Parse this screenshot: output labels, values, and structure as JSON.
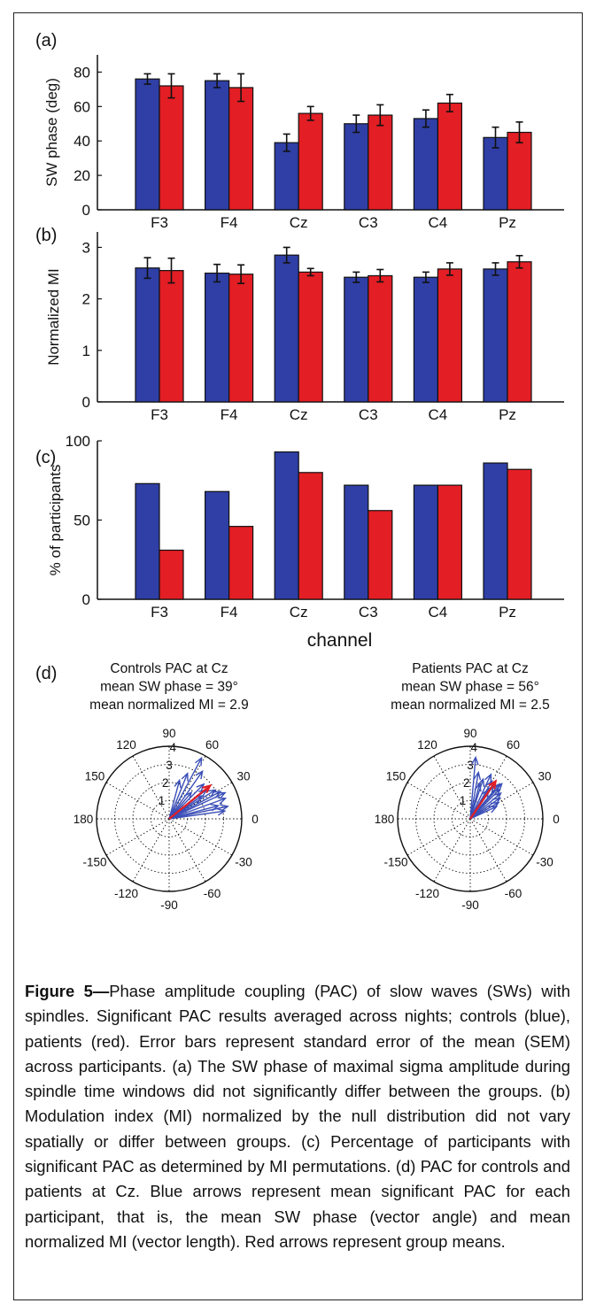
{
  "chart_data": [
    {
      "panel": "(a)",
      "type": "bar",
      "categories": [
        "F3",
        "F4",
        "Cz",
        "C3",
        "C4",
        "Pz"
      ],
      "ylabel": "SW phase (deg)",
      "ylim": [
        0,
        90
      ],
      "yticks": [
        0,
        20,
        40,
        60,
        80
      ],
      "series": [
        {
          "color": "#2f3fa6",
          "values": [
            76,
            75,
            39,
            50,
            53,
            42
          ],
          "errors": [
            3,
            4,
            5,
            5,
            5,
            6
          ]
        },
        {
          "color": "#e31e24",
          "values": [
            72,
            71,
            56,
            55,
            62,
            45
          ],
          "errors": [
            7,
            8,
            4,
            6,
            5,
            6
          ]
        }
      ]
    },
    {
      "panel": "(b)",
      "type": "bar",
      "categories": [
        "F3",
        "F4",
        "Cz",
        "C3",
        "C4",
        "Pz"
      ],
      "ylabel": "Normalized MI",
      "ylim": [
        0,
        3.3
      ],
      "yticks": [
        0,
        1,
        2,
        3
      ],
      "series": [
        {
          "color": "#2f3fa6",
          "values": [
            2.6,
            2.5,
            2.85,
            2.42,
            2.42,
            2.58
          ],
          "errors": [
            0.2,
            0.17,
            0.15,
            0.1,
            0.1,
            0.12
          ]
        },
        {
          "color": "#e31e24",
          "values": [
            2.55,
            2.48,
            2.52,
            2.45,
            2.58,
            2.72
          ],
          "errors": [
            0.24,
            0.18,
            0.07,
            0.12,
            0.12,
            0.12
          ]
        }
      ]
    },
    {
      "panel": "(c)",
      "type": "bar",
      "categories": [
        "F3",
        "F4",
        "Cz",
        "C3",
        "C4",
        "Pz"
      ],
      "ylabel": "% of participants",
      "xlabel": "channel",
      "ylim": [
        0,
        100
      ],
      "yticks": [
        0,
        50,
        100
      ],
      "series": [
        {
          "color": "#2f3fa6",
          "values": [
            73,
            68,
            93,
            72,
            72,
            86
          ]
        },
        {
          "color": "#e31e24",
          "values": [
            31,
            46,
            80,
            56,
            72,
            82
          ]
        }
      ]
    },
    {
      "panel": "(d)",
      "type": "polar",
      "rlim": [
        0,
        4
      ],
      "rticks": [
        "1",
        "2",
        "3",
        "4"
      ],
      "angle_labels": [
        "0",
        "30",
        "60",
        "90",
        "120",
        "150",
        "180",
        "-150",
        "-120",
        "-90",
        "-60",
        "-30"
      ],
      "plots": [
        {
          "title": [
            "Controls PAC at Cz",
            "mean SW phase = 39°",
            "mean normalized MI = 2.9"
          ],
          "arrows": [
            {
              "angle": 62,
              "mag": 3.8
            },
            {
              "angle": 55,
              "mag": 3.2
            },
            {
              "angle": 68,
              "mag": 2.7
            },
            {
              "angle": 75,
              "mag": 2.2
            },
            {
              "angle": 45,
              "mag": 2.7
            },
            {
              "angle": 38,
              "mag": 2.6
            },
            {
              "angle": 32,
              "mag": 3.0
            },
            {
              "angle": 28,
              "mag": 3.2
            },
            {
              "angle": 25,
              "mag": 3.4
            },
            {
              "angle": 20,
              "mag": 3.3
            },
            {
              "angle": 12,
              "mag": 3.3
            },
            {
              "angle": 8,
              "mag": 3.1
            },
            {
              "angle": 15,
              "mag": 2.8
            },
            {
              "angle": 35,
              "mag": 2.2
            },
            {
              "angle": 50,
              "mag": 1.9
            }
          ],
          "mean_arrow": {
            "angle": 39,
            "mag": 2.9
          }
        },
        {
          "title": [
            "Patients PAC at Cz",
            "mean SW phase = 56°",
            "mean normalized MI = 2.5"
          ],
          "arrows": [
            {
              "angle": 85,
              "mag": 3.4
            },
            {
              "angle": 80,
              "mag": 2.6
            },
            {
              "angle": 72,
              "mag": 2.3
            },
            {
              "angle": 65,
              "mag": 2.7
            },
            {
              "angle": 60,
              "mag": 2.4
            },
            {
              "angle": 55,
              "mag": 2.2
            },
            {
              "angle": 50,
              "mag": 2.5
            },
            {
              "angle": 45,
              "mag": 2.3
            },
            {
              "angle": 40,
              "mag": 2.2
            },
            {
              "angle": 35,
              "mag": 2.0
            },
            {
              "angle": 30,
              "mag": 1.8
            },
            {
              "angle": 25,
              "mag": 1.6
            },
            {
              "angle": 58,
              "mag": 1.9
            },
            {
              "angle": 75,
              "mag": 2.0
            },
            {
              "angle": 48,
              "mag": 2.6
            }
          ],
          "mean_arrow": {
            "angle": 56,
            "mag": 2.5
          }
        }
      ]
    }
  ],
  "caption": {
    "label": "Figure 5—",
    "text": "Phase amplitude coupling (PAC) of slow waves (SWs) with spindles. Significant PAC results averaged across nights; controls (blue), patients (red). Error bars represent standard error of the mean (SEM) across participants. (a) The SW phase of maximal sigma amplitude during spindle time windows did not significantly differ between the groups. (b) Modulation index (MI) normalized by the null distribution did not vary spatially or differ between groups. (c) Percentage of participants with significant PAC as determined by MI permutations. (d) PAC for controls and patients at Cz. Blue arrows represent mean significant PAC for each participant, that is, the mean SW phase (vector angle) and mean normalized MI (vector length). Red arrows represent group means."
  }
}
